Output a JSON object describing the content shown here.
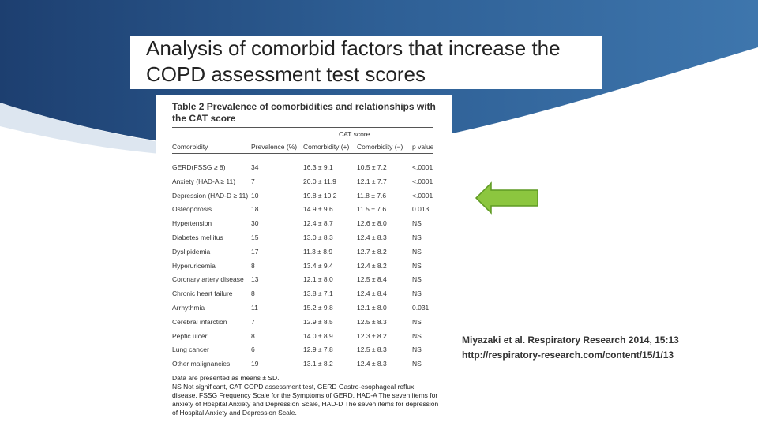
{
  "slide_title": "Analysis of comorbid factors that increase the COPD assessment test scores",
  "table": {
    "title": "Table 2 Prevalence of comorbidities and relationships with the CAT score",
    "group_header": "CAT score",
    "headers": [
      "Comorbidity",
      "Prevalence (%)",
      "Comorbidity (+)",
      "Comorbidity (−)",
      "p value"
    ],
    "rows": [
      [
        "GERD(FSSG ≥ 8)",
        "34",
        "16.3 ± 9.1",
        "10.5 ± 7.2",
        "<.0001"
      ],
      [
        "Anxiety (HAD-A ≥ 11)",
        "7",
        "20.0 ± 11.9",
        "12.1 ± 7.7",
        "<.0001"
      ],
      [
        "Depression (HAD-D ≥ 11)",
        "10",
        "19.8 ± 10.2",
        "11.8 ± 7.6",
        "<.0001"
      ],
      [
        "Osteoporosis",
        "18",
        "14.9 ± 9.6",
        "11.5 ± 7.6",
        "0.013"
      ],
      [
        "Hypertension",
        "30",
        "12.4 ± 8.7",
        "12.6 ± 8.0",
        "NS"
      ],
      [
        "Diabetes mellitus",
        "15",
        "13.0 ± 8.3",
        "12.4 ± 8.3",
        "NS"
      ],
      [
        "Dyslipidemia",
        "17",
        "11.3 ± 8.9",
        "12.7 ± 8.2",
        "NS"
      ],
      [
        "Hyperuricemia",
        "8",
        "13.4 ± 9.4",
        "12.4 ± 8.2",
        "NS"
      ],
      [
        "Coronary artery disease",
        "13",
        "12.1 ± 8.0",
        "12.5 ± 8.4",
        "NS"
      ],
      [
        "Chronic heart failure",
        "8",
        "13.8 ± 7.1",
        "12.4 ± 8.4",
        "NS"
      ],
      [
        "Arrhythmia",
        "11",
        "15.2 ± 9.8",
        "12.1 ± 8.0",
        "0.031"
      ],
      [
        "Cerebral infarction",
        "7",
        "12.9 ± 8.5",
        "12.5 ± 8.3",
        "NS"
      ],
      [
        "Peptic ulcer",
        "8",
        "14.0 ± 8.9",
        "12.3 ± 8.2",
        "NS"
      ],
      [
        "Lung cancer",
        "6",
        "12.9 ± 7.8",
        "12.5 ± 8.3",
        "NS"
      ],
      [
        "Other malignancies",
        "19",
        "13.1 ± 8.2",
        "12.4 ± 8.3",
        "NS"
      ]
    ],
    "footnotes": [
      "Data are presented as means ± SD.",
      "NS Not significant, CAT COPD assessment test, GERD Gastro-esophageal reflux disease, FSSG Frequency Scale for the Symptoms of GERD, HAD-A The seven items for anxiety of Hospital Anxiety and Depression Scale, HAD-D The seven items for depression of Hospital Anxiety and Depression Scale."
    ]
  },
  "citation": [
    "Miyazaki et al. Respiratory Research 2014, 15:13",
    "http://respiratory-research.com/content/15/1/13"
  ]
}
